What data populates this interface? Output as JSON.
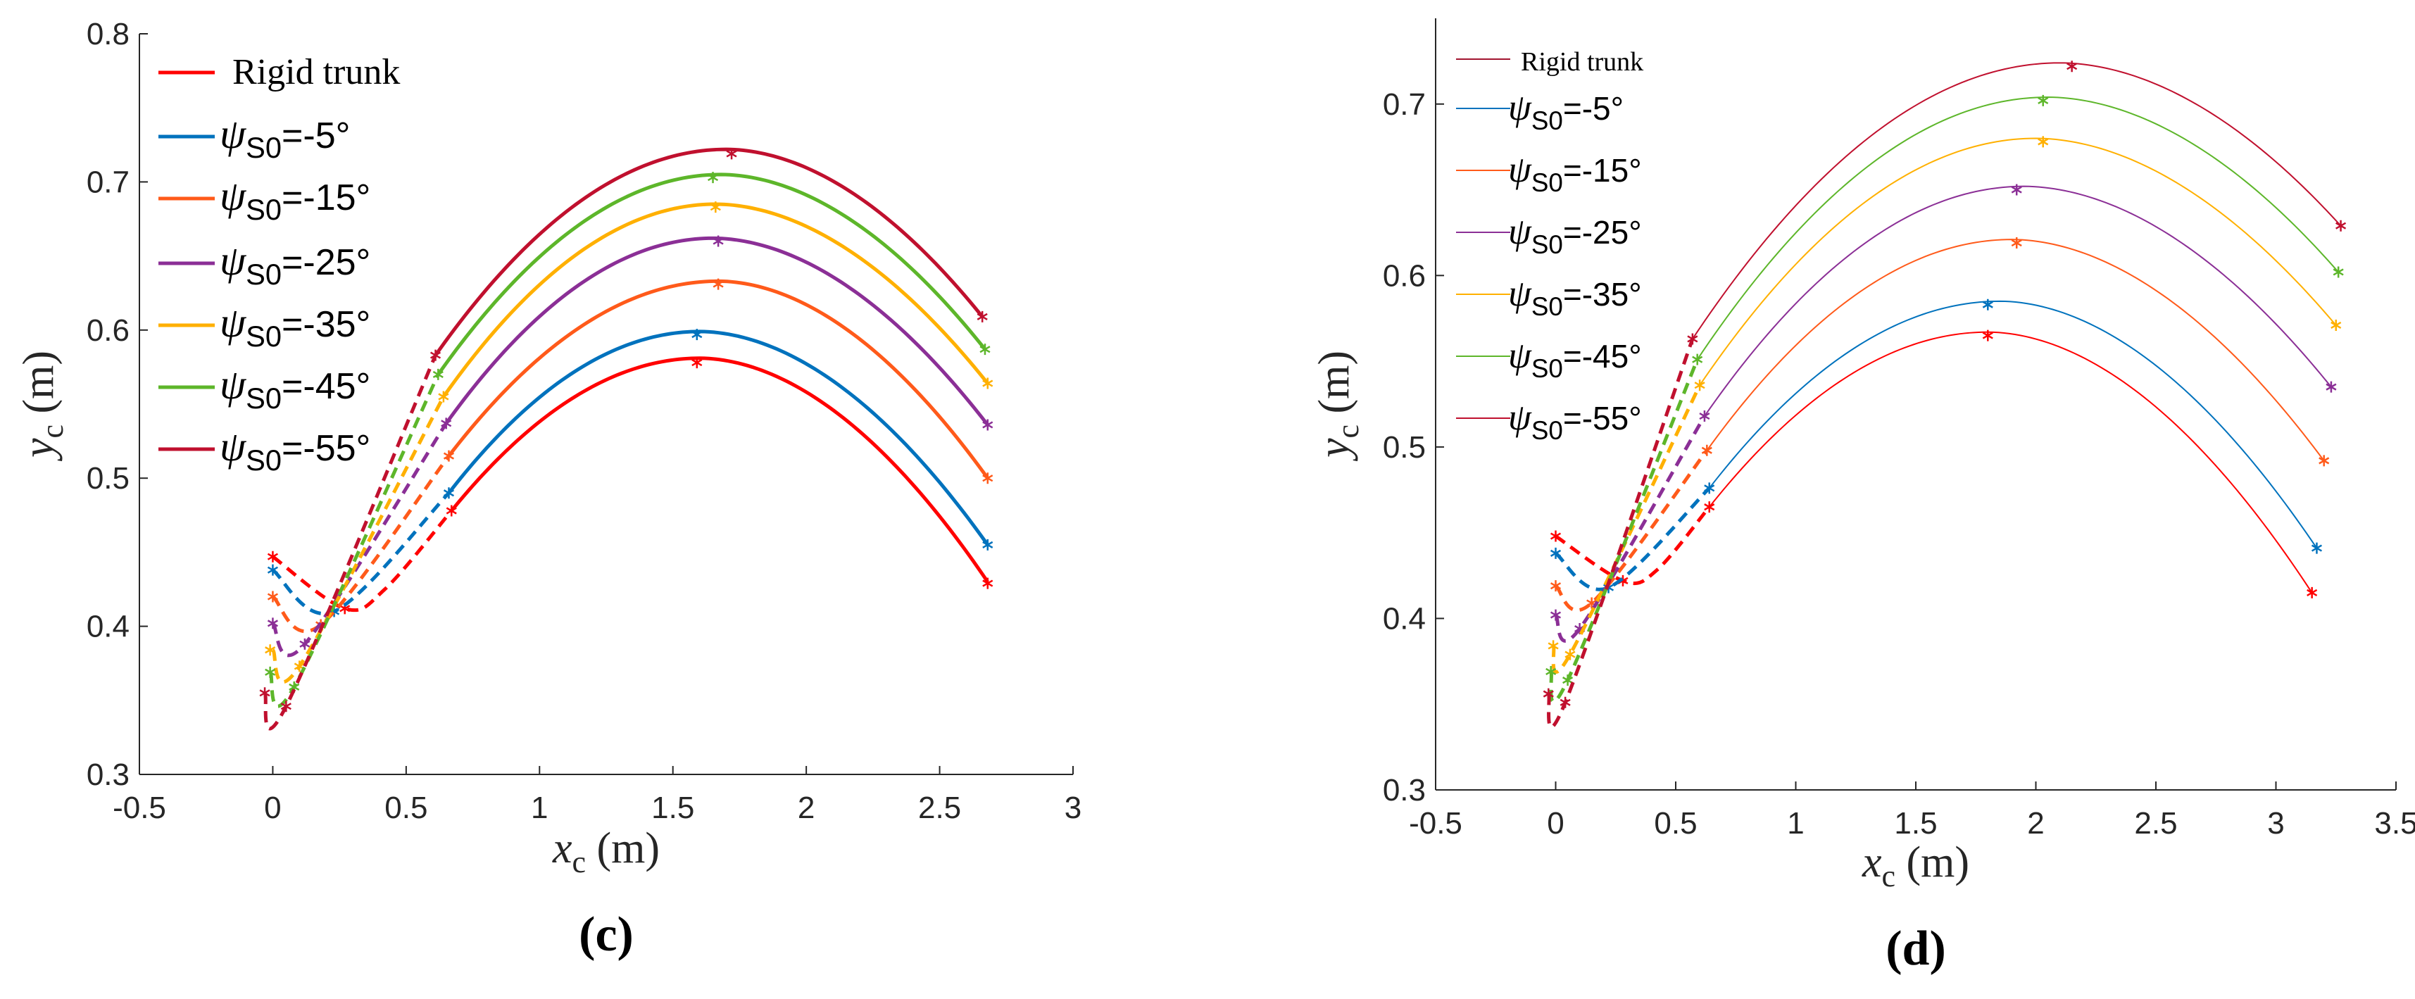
{
  "chart_data": [
    {
      "type": "line",
      "panel_label": "(c)",
      "xlabel": {
        "main": "x",
        "sub": "c",
        "unit": " (m)"
      },
      "ylabel": {
        "main": "y",
        "sub": "c",
        "unit": " (m)"
      },
      "xlim": [
        -0.5,
        3
      ],
      "ylim": [
        0.3,
        0.8
      ],
      "xticks": [
        "-0.5",
        "0",
        "0.5",
        "1",
        "1.5",
        "2",
        "2.5",
        "3"
      ],
      "yticks": [
        "0.3",
        "0.4",
        "0.5",
        "0.6",
        "0.7",
        "0.8"
      ],
      "grid": false,
      "legend_position": "top-left",
      "line_weight": "thick",
      "series": [
        {
          "name": "Rigid trunk",
          "color": "#FF0000",
          "dashed": [
            [
              0,
              0.447
            ],
            [
              0.27,
              0.412
            ],
            [
              0.42,
              0.425
            ],
            [
              0.67,
              0.478
            ]
          ],
          "solid": [
            [
              0.67,
              0.478
            ],
            [
              1.6,
              0.581
            ],
            [
              2.68,
              0.43
            ]
          ],
          "markers": [
            [
              0,
              0.447
            ],
            [
              0.27,
              0.412
            ],
            [
              0.67,
              0.478
            ],
            [
              1.59,
              0.578
            ],
            [
              2.68,
              0.429
            ]
          ]
        },
        {
          "name": "ψS0=-5°",
          "sym": "ψ",
          "sub": "S0",
          "val": "=-5°",
          "color": "#0072BD",
          "dashed": [
            [
              0,
              0.438
            ],
            [
              0.23,
              0.41
            ],
            [
              0.66,
              0.49
            ]
          ],
          "solid": [
            [
              0.66,
              0.49
            ],
            [
              1.6,
              0.599
            ],
            [
              2.68,
              0.455
            ]
          ],
          "markers": [
            [
              0,
              0.438
            ],
            [
              0.23,
              0.41
            ],
            [
              0.66,
              0.49
            ],
            [
              1.59,
              0.597
            ],
            [
              2.68,
              0.455
            ]
          ]
        },
        {
          "name": "ψS0=-15°",
          "sym": "ψ",
          "sub": "S0",
          "val": "=-15°",
          "color": "#FF5A1A",
          "dashed": [
            [
              0,
              0.42
            ],
            [
              0.18,
              0.401
            ],
            [
              0.66,
              0.515
            ]
          ],
          "solid": [
            [
              0.66,
              0.515
            ],
            [
              1.67,
              0.633
            ],
            [
              2.68,
              0.5
            ]
          ],
          "markers": [
            [
              0,
              0.42
            ],
            [
              0.18,
              0.401
            ],
            [
              0.66,
              0.515
            ],
            [
              1.67,
              0.631
            ],
            [
              2.68,
              0.5
            ]
          ]
        },
        {
          "name": "ψS0=-25°",
          "sym": "ψ",
          "sub": "S0",
          "val": "=-25°",
          "color": "#8B2F96",
          "dashed": [
            [
              0,
              0.402
            ],
            [
              0.12,
              0.388
            ],
            [
              0.65,
              0.537
            ]
          ],
          "solid": [
            [
              0.65,
              0.537
            ],
            [
              1.65,
              0.662
            ],
            [
              2.68,
              0.536
            ]
          ],
          "markers": [
            [
              0,
              0.402
            ],
            [
              0.12,
              0.388
            ],
            [
              0.65,
              0.537
            ],
            [
              1.67,
              0.66
            ],
            [
              2.68,
              0.536
            ]
          ]
        },
        {
          "name": "ψS0=-35°",
          "sym": "ψ",
          "sub": "S0",
          "val": "=-35°",
          "color": "#FFB000",
          "dashed": [
            [
              0,
              0.384
            ],
            [
              0.1,
              0.373
            ],
            [
              0.64,
              0.555
            ]
          ],
          "solid": [
            [
              0.64,
              0.555
            ],
            [
              1.66,
              0.685
            ],
            [
              2.68,
              0.564
            ]
          ],
          "markers": [
            [
              -0.01,
              0.384
            ],
            [
              0.1,
              0.373
            ],
            [
              0.64,
              0.555
            ],
            [
              1.66,
              0.683
            ],
            [
              2.68,
              0.564
            ]
          ]
        },
        {
          "name": "ψS0=-45°",
          "sym": "ψ",
          "sub": "S0",
          "val": "=-45°",
          "color": "#5DB62A",
          "dashed": [
            [
              -0.01,
              0.369
            ],
            [
              0.08,
              0.359
            ],
            [
              0.62,
              0.57
            ]
          ],
          "solid": [
            [
              0.62,
              0.57
            ],
            [
              1.68,
              0.705
            ],
            [
              2.67,
              0.587
            ]
          ],
          "markers": [
            [
              -0.01,
              0.369
            ],
            [
              0.08,
              0.359
            ],
            [
              0.62,
              0.57
            ],
            [
              1.65,
              0.703
            ],
            [
              2.67,
              0.587
            ]
          ]
        },
        {
          "name": "ψS0=-55°",
          "sym": "ψ",
          "sub": "S0",
          "val": "=-55°",
          "color": "#C0102E",
          "dashed": [
            [
              -0.03,
              0.355
            ],
            [
              0.05,
              0.346
            ],
            [
              0.61,
              0.583
            ]
          ],
          "solid": [
            [
              0.61,
              0.583
            ],
            [
              1.7,
              0.722
            ],
            [
              2.66,
              0.609
            ]
          ],
          "markers": [
            [
              -0.03,
              0.355
            ],
            [
              0.05,
              0.346
            ],
            [
              0.61,
              0.583
            ],
            [
              1.72,
              0.719
            ],
            [
              2.66,
              0.609
            ]
          ]
        }
      ]
    },
    {
      "type": "line",
      "panel_label": "(d)",
      "xlabel": {
        "main": "x",
        "sub": "c",
        "unit": " (m)"
      },
      "ylabel": {
        "main": "y",
        "sub": "c",
        "unit": " (m)"
      },
      "xlim": [
        -0.5,
        3.5
      ],
      "ylim": [
        0.3,
        0.75
      ],
      "xticks": [
        "-0.5",
        "0",
        "0.5",
        "1",
        "1.5",
        "2",
        "2.5",
        "3",
        "3.5"
      ],
      "yticks": [
        "0.3",
        "0.4",
        "0.5",
        "0.6",
        "0.7"
      ],
      "grid": false,
      "legend_position": "top-left",
      "line_weight": "thin",
      "series": [
        {
          "name": "Rigid trunk",
          "color": "#FF0000",
          "legend_color": "#A2142F",
          "dashed": [
            [
              0,
              0.448
            ],
            [
              0.28,
              0.422
            ],
            [
              0.42,
              0.428
            ],
            [
              0.64,
              0.465
            ]
          ],
          "solid": [
            [
              0.64,
              0.465
            ],
            [
              1.8,
              0.567
            ],
            [
              3.15,
              0.415
            ]
          ],
          "markers": [
            [
              0,
              0.448
            ],
            [
              0.28,
              0.422
            ],
            [
              0.64,
              0.465
            ],
            [
              1.8,
              0.565
            ],
            [
              3.15,
              0.415
            ]
          ]
        },
        {
          "name": "ψS0=-5°",
          "sym": "ψ",
          "sub": "S0",
          "val": "=-5°",
          "color": "#0072BD",
          "dashed": [
            [
              0,
              0.438
            ],
            [
              0.22,
              0.418
            ],
            [
              0.64,
              0.476
            ]
          ],
          "solid": [
            [
              0.64,
              0.476
            ],
            [
              1.85,
              0.585
            ],
            [
              3.17,
              0.441
            ]
          ],
          "markers": [
            [
              0,
              0.438
            ],
            [
              0.22,
              0.418
            ],
            [
              0.64,
              0.476
            ],
            [
              1.8,
              0.583
            ],
            [
              3.17,
              0.441
            ]
          ]
        },
        {
          "name": "ψS0=-15°",
          "sym": "ψ",
          "sub": "S0",
          "val": "=-15°",
          "color": "#FF5A1A",
          "dashed": [
            [
              0,
              0.419
            ],
            [
              0.15,
              0.409
            ],
            [
              0.63,
              0.498
            ]
          ],
          "solid": [
            [
              0.63,
              0.498
            ],
            [
              1.9,
              0.621
            ],
            [
              3.2,
              0.492
            ]
          ],
          "markers": [
            [
              0,
              0.419
            ],
            [
              0.15,
              0.409
            ],
            [
              0.63,
              0.498
            ],
            [
              1.92,
              0.619
            ],
            [
              3.2,
              0.492
            ]
          ]
        },
        {
          "name": "ψS0=-25°",
          "sym": "ψ",
          "sub": "S0",
          "val": "=-25°",
          "color": "#8B2F96",
          "dashed": [
            [
              0,
              0.402
            ],
            [
              0.1,
              0.394
            ],
            [
              0.62,
              0.518
            ]
          ],
          "solid": [
            [
              0.62,
              0.518
            ],
            [
              1.95,
              0.652
            ],
            [
              3.23,
              0.535
            ]
          ],
          "markers": [
            [
              0,
              0.402
            ],
            [
              0.1,
              0.394
            ],
            [
              0.62,
              0.518
            ],
            [
              1.92,
              0.65
            ],
            [
              3.23,
              0.535
            ]
          ]
        },
        {
          "name": "ψS0=-35°",
          "sym": "ψ",
          "sub": "S0",
          "val": "=-35°",
          "color": "#FFB000",
          "dashed": [
            [
              -0.01,
              0.384
            ],
            [
              0.06,
              0.379
            ],
            [
              0.6,
              0.536
            ]
          ],
          "solid": [
            [
              0.6,
              0.536
            ],
            [
              2.0,
              0.68
            ],
            [
              3.25,
              0.571
            ]
          ],
          "markers": [
            [
              -0.01,
              0.384
            ],
            [
              0.06,
              0.379
            ],
            [
              0.6,
              0.536
            ],
            [
              2.03,
              0.678
            ],
            [
              3.25,
              0.571
            ]
          ]
        },
        {
          "name": "ψS0=-45°",
          "sym": "ψ",
          "sub": "S0",
          "val": "=-45°",
          "color": "#5DB62A",
          "dashed": [
            [
              -0.02,
              0.369
            ],
            [
              0.05,
              0.364
            ],
            [
              0.59,
              0.551
            ]
          ],
          "solid": [
            [
              0.59,
              0.551
            ],
            [
              2.05,
              0.704
            ],
            [
              3.26,
              0.602
            ]
          ],
          "markers": [
            [
              -0.02,
              0.369
            ],
            [
              0.05,
              0.364
            ],
            [
              0.59,
              0.551
            ],
            [
              2.03,
              0.702
            ],
            [
              3.26,
              0.602
            ]
          ]
        },
        {
          "name": "ψS0=-55°",
          "sym": "ψ",
          "sub": "S0",
          "val": "=-55°",
          "color": "#C0102E",
          "dashed": [
            [
              -0.03,
              0.356
            ],
            [
              0.04,
              0.351
            ],
            [
              0.57,
              0.563
            ]
          ],
          "solid": [
            [
              0.57,
              0.563
            ],
            [
              2.1,
              0.724
            ],
            [
              3.27,
              0.629
            ]
          ],
          "markers": [
            [
              -0.03,
              0.356
            ],
            [
              0.04,
              0.351
            ],
            [
              0.57,
              0.563
            ],
            [
              2.15,
              0.722
            ],
            [
              3.27,
              0.629
            ]
          ]
        }
      ]
    }
  ]
}
